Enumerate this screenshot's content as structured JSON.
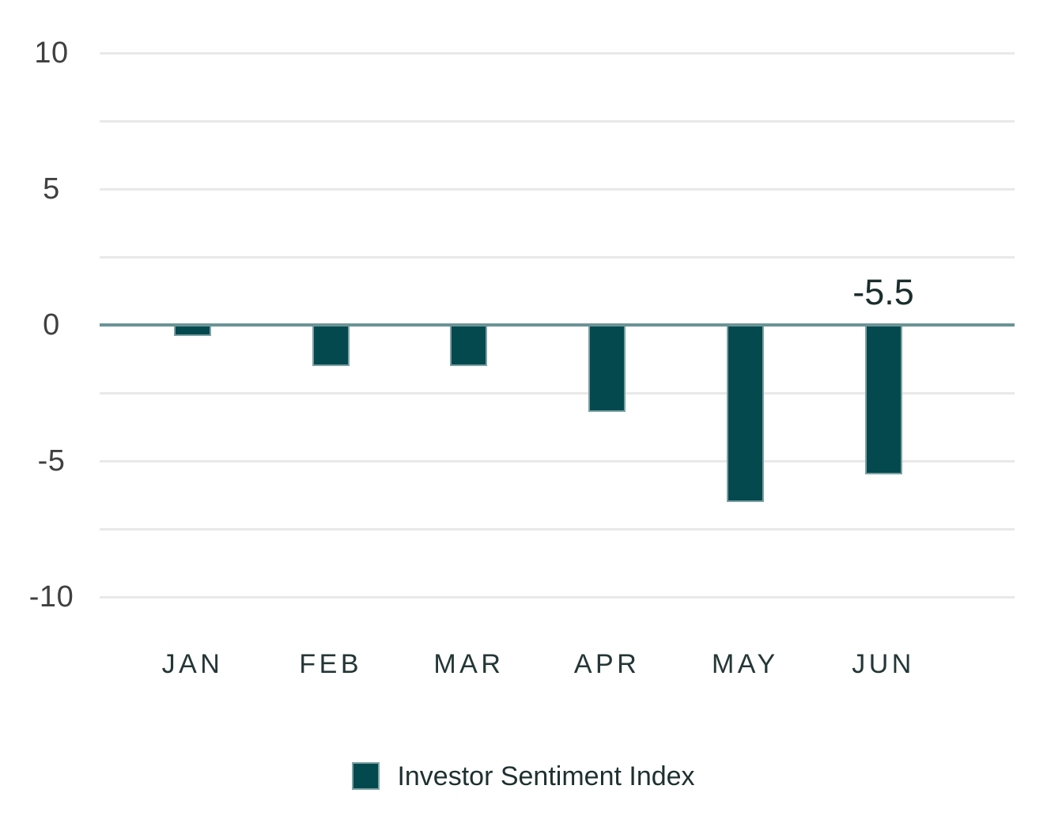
{
  "chart_data": {
    "type": "bar",
    "categories": [
      "JAN",
      "FEB",
      "MAR",
      "APR",
      "MAY",
      "JUN"
    ],
    "series": [
      {
        "name": "Investor Sentiment Index",
        "values": [
          -0.4,
          -1.5,
          -1.5,
          -3.2,
          -6.5,
          -5.5
        ]
      }
    ],
    "title": "",
    "xlabel": "",
    "ylabel": "",
    "ylim": [
      -10,
      10
    ],
    "ytick_labels": [
      "10",
      "5",
      "0",
      "-5",
      "-10"
    ],
    "ytick_values": [
      10,
      5,
      0,
      -5,
      -10
    ],
    "grid": true,
    "grid_step": 2.5,
    "legend_position": "bottom-center",
    "annotations": [
      {
        "text": "-5.5",
        "category": "JUN",
        "position": "above-zero-line"
      }
    ],
    "colors": {
      "bar_fill": "#03494e",
      "bar_border": "#7da1a3",
      "zero_line": "#6b9496",
      "gridline": "#e9e9e9",
      "ytick_label": "#404040",
      "xtick_label": "#243636",
      "annotation": "#1b2d2d",
      "legend_text": "#1e3030",
      "background": "#ffffff"
    }
  },
  "legend": {
    "label": "Investor Sentiment Index"
  }
}
